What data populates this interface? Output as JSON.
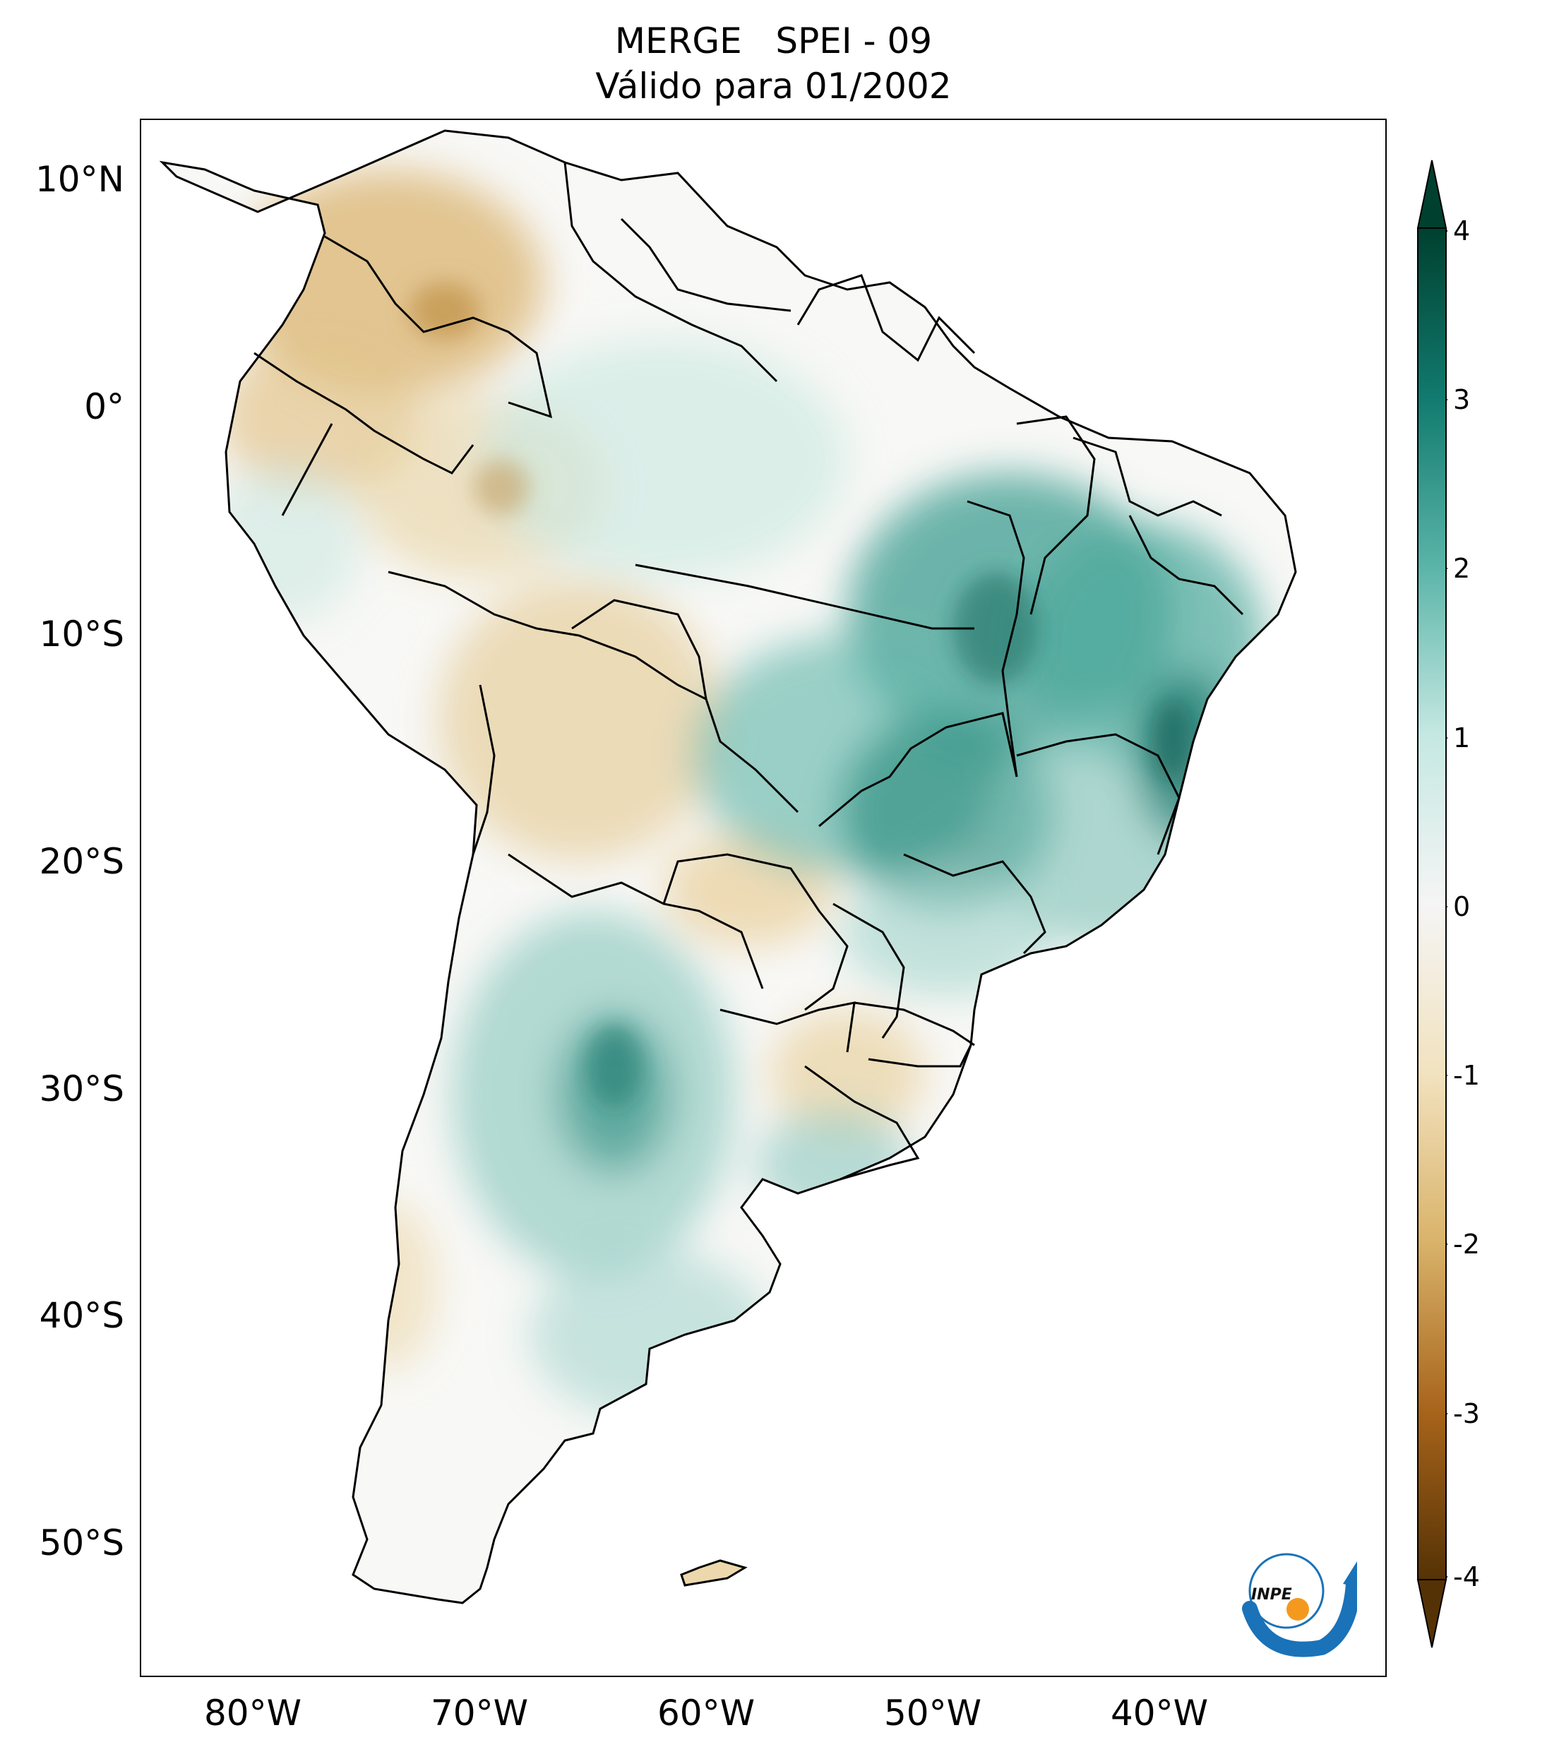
{
  "title": {
    "line1": "MERGE   SPEI - 09",
    "line2": "Válido para 01/2002"
  },
  "map": {
    "region": "South America",
    "lat_ticks": [
      "10°N",
      "0°",
      "10°S",
      "20°S",
      "30°S",
      "40°S",
      "50°S"
    ],
    "lon_ticks": [
      "80°W",
      "70°W",
      "60°W",
      "50°W",
      "40°W"
    ],
    "frame_color": "#000000",
    "border_color": "#000000"
  },
  "colorbar": {
    "min": -4,
    "max": 4,
    "extend": "both",
    "tick_labels": [
      "4",
      "3",
      "2",
      "1",
      "0",
      "-1",
      "-2",
      "-3",
      "-4"
    ],
    "colors": {
      "wet_extreme": "#00402f",
      "wet_strong": "#117a6e",
      "wet_moderate": "#5ab4a8",
      "wet_light": "#c5e8e2",
      "neutral": "#f5f5f5",
      "dry_light": "#f2e2bf",
      "dry_moderate": "#d9b36a",
      "dry_strong": "#a8641b",
      "dry_extreme": "#553205"
    }
  },
  "logo": {
    "text": "INPE",
    "colors": {
      "arc": "#1a72b8",
      "dot": "#f39a1e"
    }
  }
}
